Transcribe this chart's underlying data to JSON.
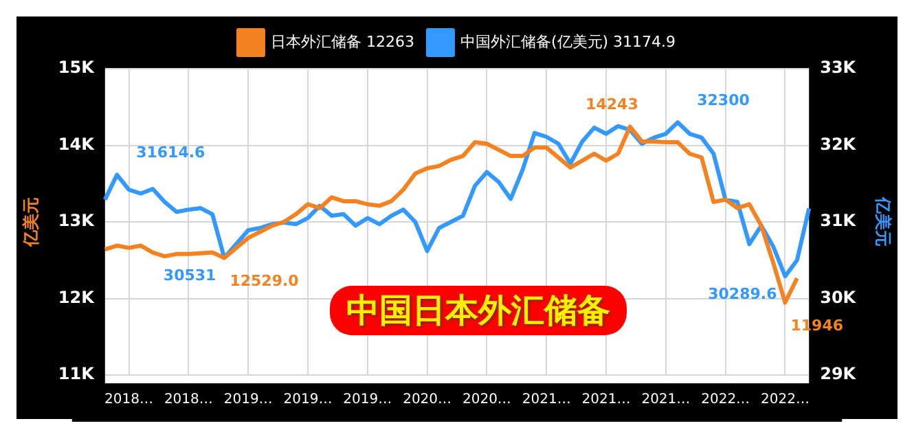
{
  "chart_data": {
    "type": "line",
    "title": "中国日本外汇储备",
    "ylabel": "亿美元",
    "y2label": "亿美元",
    "categories": [
      null,
      null,
      "2018…",
      null,
      null,
      null,
      null,
      "2018…",
      null,
      null,
      null,
      null,
      "2019…",
      null,
      null,
      null,
      null,
      "2019…",
      null,
      null,
      null,
      null,
      "2019…",
      null,
      null,
      null,
      null,
      "2020…",
      null,
      null,
      null,
      null,
      "2020…",
      null,
      null,
      null,
      null,
      "2021…",
      null,
      null,
      null,
      null,
      "2021…",
      null,
      null,
      null,
      null,
      "2021…",
      null,
      null,
      null,
      null,
      "2022…",
      null,
      null,
      null,
      null,
      "2022…",
      null,
      null
    ],
    "series": [
      {
        "name": "日本外汇储备 12263",
        "color": "#f58220",
        "values": [
          12640,
          12690,
          12660,
          12690,
          12600,
          12550,
          12580,
          12580,
          12590,
          12600,
          12529.0,
          12660,
          12790,
          12870,
          12950,
          13000,
          13100,
          13230,
          13180,
          13320,
          13270,
          13270,
          13230,
          13210,
          13270,
          13420,
          13630,
          13700,
          13730,
          13810,
          13860,
          14040,
          14020,
          13940,
          13860,
          13860,
          13970,
          13970,
          13840,
          13710,
          13800,
          13890,
          13800,
          13890,
          14243,
          14050,
          14050,
          14040,
          14040,
          13890,
          13840,
          13260,
          13290,
          13180,
          13230,
          12950,
          12470,
          11946,
          12263,
          null
        ],
        "value_labels": [
          null,
          null,
          null,
          null,
          null,
          null,
          null,
          null,
          null,
          null,
          "12529.0",
          null,
          null,
          null,
          null,
          null,
          null,
          null,
          null,
          null,
          null,
          null,
          null,
          null,
          null,
          null,
          null,
          null,
          null,
          null,
          null,
          null,
          null,
          null,
          null,
          null,
          null,
          null,
          null,
          null,
          null,
          null,
          null,
          null,
          "14243",
          null,
          null,
          null,
          null,
          null,
          null,
          null,
          null,
          null,
          null,
          null,
          null,
          "11946",
          null,
          null
        ]
      },
      {
        "name": "中国外汇储备(亿美元) 31174.9",
        "color": "#3399ff",
        "axis": "y2",
        "values": [
          31290,
          31614.6,
          31420,
          31370,
          31430,
          31260,
          31130,
          31160,
          31180,
          31100,
          30531,
          30710,
          30890,
          30920,
          30970,
          30990,
          30970,
          31050,
          31210,
          31080,
          31100,
          30950,
          31050,
          30970,
          31080,
          31160,
          31000,
          30620,
          30920,
          31000,
          31080,
          31470,
          31650,
          31520,
          31300,
          31680,
          32160,
          32110,
          32020,
          31760,
          32050,
          32230,
          32150,
          32250,
          32200,
          32020,
          32100,
          32150,
          32300,
          32150,
          32100,
          31890,
          31290,
          31260,
          30710,
          30950,
          30680,
          30289.6,
          30500,
          31174.9
        ],
        "value_labels": [
          null,
          "31614.6",
          null,
          null,
          null,
          null,
          null,
          null,
          null,
          null,
          "30531",
          null,
          null,
          null,
          null,
          null,
          null,
          null,
          null,
          null,
          null,
          null,
          null,
          null,
          null,
          null,
          null,
          null,
          null,
          null,
          null,
          null,
          null,
          null,
          null,
          null,
          null,
          null,
          null,
          null,
          null,
          null,
          null,
          null,
          null,
          null,
          null,
          null,
          "32300",
          null,
          null,
          null,
          null,
          null,
          null,
          null,
          null,
          "30289.6",
          null,
          null
        ]
      }
    ],
    "ylim": [
      11000,
      15000
    ],
    "yticks": [
      {
        "value": 11000,
        "label": "11K"
      },
      {
        "value": 12000,
        "label": "12K"
      },
      {
        "value": 13000,
        "label": "13K"
      },
      {
        "value": 14000,
        "label": "14K"
      },
      {
        "value": 15000,
        "label": "15K"
      }
    ],
    "y2lim": [
      29000,
      33000
    ],
    "y2ticks": [
      {
        "value": 29000,
        "label": "29K"
      },
      {
        "value": 30000,
        "label": "30K"
      },
      {
        "value": 31000,
        "label": "31K"
      },
      {
        "value": 32000,
        "label": "32K"
      },
      {
        "value": 33000,
        "label": "33K"
      }
    ],
    "grid": true,
    "legend": "top",
    "marker": "none",
    "line_style": "solid"
  }
}
